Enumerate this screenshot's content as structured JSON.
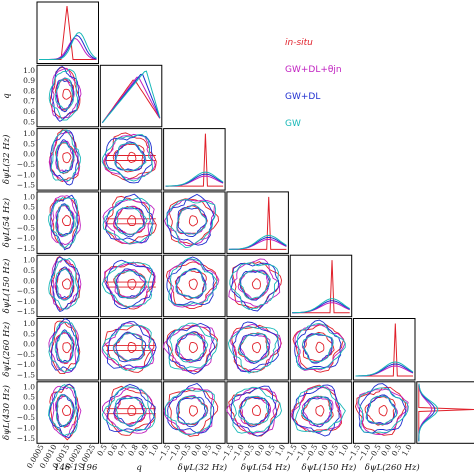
{
  "chart_data": {
    "type": "corner",
    "x_tick_labels": {
      "col0": [
        "0.0005",
        "0.0010",
        "0.0015",
        "0.0020",
        "0.0025"
      ],
      "q": [
        "0.5",
        "0.6",
        "0.7",
        "0.8",
        "0.9",
        "1.0"
      ],
      "dpsi": [
        "−1.5",
        "−1.0",
        "−0.5",
        "0.0",
        "0.5",
        "1.0"
      ]
    },
    "y_tick_labels": {
      "q": [
        "1.0",
        "0.9",
        "0.8",
        "0.7",
        "0.6",
        "0.5"
      ],
      "dpsi": [
        "1.0",
        "0.5",
        "0.0",
        "−0.5",
        "−1.0",
        "−1.5"
      ]
    },
    "x_axis_labels": [
      "146·1.196",
      "q",
      "δψL(32 Hz)",
      "δψL(54 Hz)",
      "δψL(150 Hz)",
      "δψL(260 Hz)"
    ],
    "y_axis_labels": [
      "",
      "q",
      "δψL(32 Hz)",
      "δψL(54 Hz)",
      "δψL(150 Hz)",
      "δψL(260 Hz)",
      "δψL(430 Hz)"
    ],
    "series": [
      {
        "name": "in-situ",
        "color": "#e0202a"
      },
      {
        "name": "GW+DL+θjn",
        "color": "#c020c0"
      },
      {
        "name": "GW+DL",
        "color": "#1f2fd0"
      },
      {
        "name": "GW",
        "color": "#18b8b8"
      }
    ],
    "legend_position": "top-right"
  },
  "colors": {
    "in_situ": "#e0202a",
    "gw_dl_theta": "#c020c0",
    "gw_dl": "#1f2fd0",
    "gw": "#18b8b8"
  }
}
